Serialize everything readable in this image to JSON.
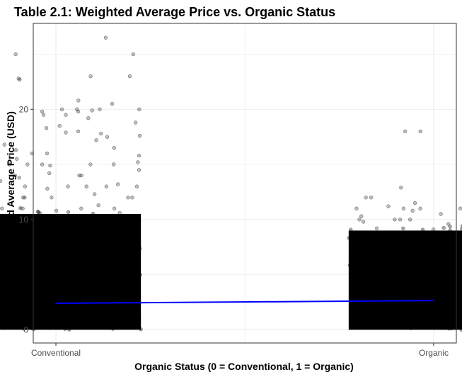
{
  "chart_data": {
    "type": "scatter",
    "title": "Table 2.1: Weighted Average Price vs. Organic Status",
    "xlabel": "Organic Status (0 = Conventional, 1 = Organic)",
    "ylabel": "Weighted Average Price (USD)",
    "x_categories": [
      {
        "label": "Conventional",
        "value": 0
      },
      {
        "label": "Organic",
        "value": 1
      }
    ],
    "xlim": [
      -0.06,
      1.06
    ],
    "ylim": [
      -1.2,
      27.8
    ],
    "y_ticks": [
      0,
      10,
      20
    ],
    "grid": true,
    "legend": "none",
    "colors": {
      "points": "#000000",
      "trend_line": "#0000ff",
      "grid": "#ebebeb",
      "panel_border": "#333333"
    },
    "series": [
      {
        "group": "Conventional",
        "x": 0,
        "jitter_width": 0.45,
        "dense_range": [
          0,
          10.5
        ],
        "points": [
          26.5,
          25,
          25,
          23,
          23,
          22.8,
          22.7,
          21,
          20.8,
          20.5,
          20,
          20,
          20,
          20,
          19.9,
          19.8,
          19.8,
          19.5,
          19.5,
          19.2,
          19,
          19,
          18.8,
          18.6,
          18.5,
          18.3,
          18,
          18,
          17.9,
          17.8,
          17.6,
          17.5,
          17.2,
          17,
          17,
          16.8,
          16.5,
          16.3,
          16,
          16,
          15.8,
          15.5,
          15.2,
          15,
          15,
          15,
          15,
          15,
          15,
          14.9,
          14.5,
          14.2,
          14,
          14,
          14,
          14,
          13.8,
          13.5,
          13.2,
          13,
          13,
          13,
          13,
          13,
          12.8,
          12.6,
          12.5,
          12.3,
          12,
          12,
          12,
          12,
          12,
          11.8,
          11.5,
          11.3,
          11,
          11,
          11,
          11,
          11,
          10.8,
          10.6
        ]
      },
      {
        "group": "Organic",
        "x": 1,
        "jitter_width": 0.45,
        "dense_range": [
          0,
          9.0
        ],
        "points": [
          18,
          18,
          13,
          13,
          12.9,
          12,
          12,
          11.5,
          11.2,
          11,
          11,
          11,
          11,
          11,
          10.8,
          10.5,
          10.3,
          10.2,
          10,
          10,
          10,
          10,
          10,
          9.8,
          9.6,
          9.4,
          9.2,
          9.1
        ]
      }
    ],
    "trend_line": {
      "x": [
        0,
        1
      ],
      "y": [
        2.4,
        2.65
      ]
    }
  }
}
